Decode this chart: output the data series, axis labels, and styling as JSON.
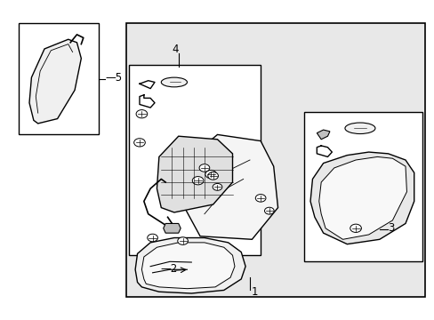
{
  "bg_color": "#ffffff",
  "diagram_bg": "#e8e8e8",
  "box_color": "#000000",
  "line_color": "#000000",
  "text_color": "#000000",
  "lgray": "#e8e8e8",
  "mgray": "#b0b0b0",
  "dgray": "#d0d0d0",
  "figsize": [
    4.89,
    3.6
  ],
  "dpi": 100
}
